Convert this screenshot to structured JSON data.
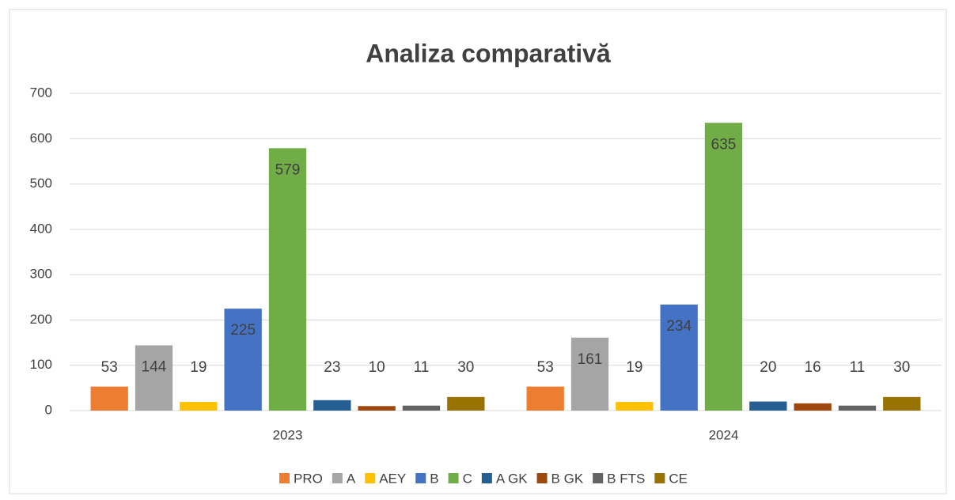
{
  "chart_data": {
    "type": "bar",
    "title": "Analiza comparativă",
    "categories": [
      "2023",
      "2024"
    ],
    "series": [
      {
        "name": "PRO",
        "color": "#ed7d31",
        "values": [
          53,
          53
        ]
      },
      {
        "name": "A",
        "color": "#a5a5a5",
        "values": [
          144,
          161
        ]
      },
      {
        "name": "AEY",
        "color": "#ffc000",
        "values": [
          19,
          19
        ]
      },
      {
        "name": "B",
        "color": "#4472c4",
        "values": [
          225,
          234
        ]
      },
      {
        "name": "C",
        "color": "#70ad47",
        "values": [
          579,
          635
        ]
      },
      {
        "name": "A GK",
        "color": "#255e91",
        "values": [
          23,
          20
        ]
      },
      {
        "name": "B GK",
        "color": "#9e480e",
        "values": [
          10,
          16
        ]
      },
      {
        "name": "B FTS",
        "color": "#636363",
        "values": [
          11,
          11
        ]
      },
      {
        "name": "CE",
        "color": "#997300",
        "values": [
          30,
          30
        ]
      }
    ],
    "ylim": [
      0,
      700
    ],
    "yticks": [
      0,
      100,
      200,
      300,
      400,
      500,
      600,
      700
    ],
    "grid": true,
    "legend": "bottom"
  }
}
